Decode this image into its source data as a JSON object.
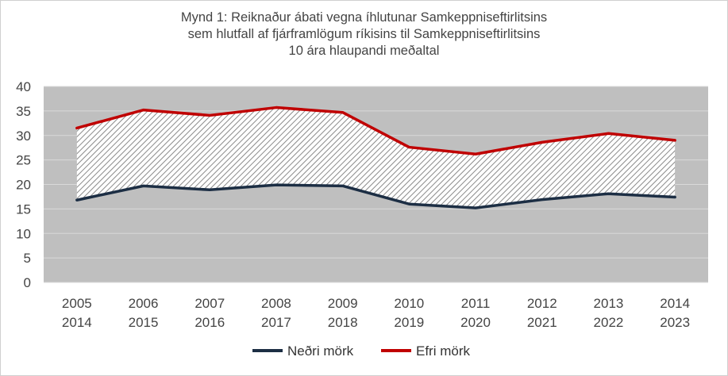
{
  "chart_data": {
    "type": "line",
    "title_lines": [
      "Mynd 1: Reiknaður ábati vegna íhlutunar Samkeppniseftirlitsins",
      "sem hlutfall af fjárframlögum ríkisins til Samkeppniseftirlitsins",
      "10 ára hlaupandi meðaltal"
    ],
    "categories": [
      [
        "2005",
        "2014"
      ],
      [
        "2006",
        "2015"
      ],
      [
        "2007",
        "2016"
      ],
      [
        "2008",
        "2017"
      ],
      [
        "2009",
        "2018"
      ],
      [
        "2010",
        "2019"
      ],
      [
        "2011",
        "2020"
      ],
      [
        "2012",
        "2021"
      ],
      [
        "2013",
        "2022"
      ],
      [
        "2014",
        "2023"
      ]
    ],
    "series": [
      {
        "name": "Neðri mörk",
        "color": "#1c2e44",
        "values": [
          16.8,
          19.7,
          18.9,
          19.9,
          19.7,
          16.0,
          15.2,
          16.9,
          18.1,
          17.4
        ]
      },
      {
        "name": "Efri mörk",
        "color": "#c00000",
        "values": [
          31.5,
          35.2,
          34.1,
          35.7,
          34.7,
          27.6,
          26.2,
          28.6,
          30.4,
          29.0
        ]
      }
    ],
    "ylim": [
      0,
      40
    ],
    "yticks": [
      0,
      5,
      10,
      15,
      20,
      25,
      30,
      35,
      40
    ],
    "plot_background": "#bfbfbf",
    "band_fill": "hatched",
    "grid": true,
    "legend_position": "bottom"
  }
}
